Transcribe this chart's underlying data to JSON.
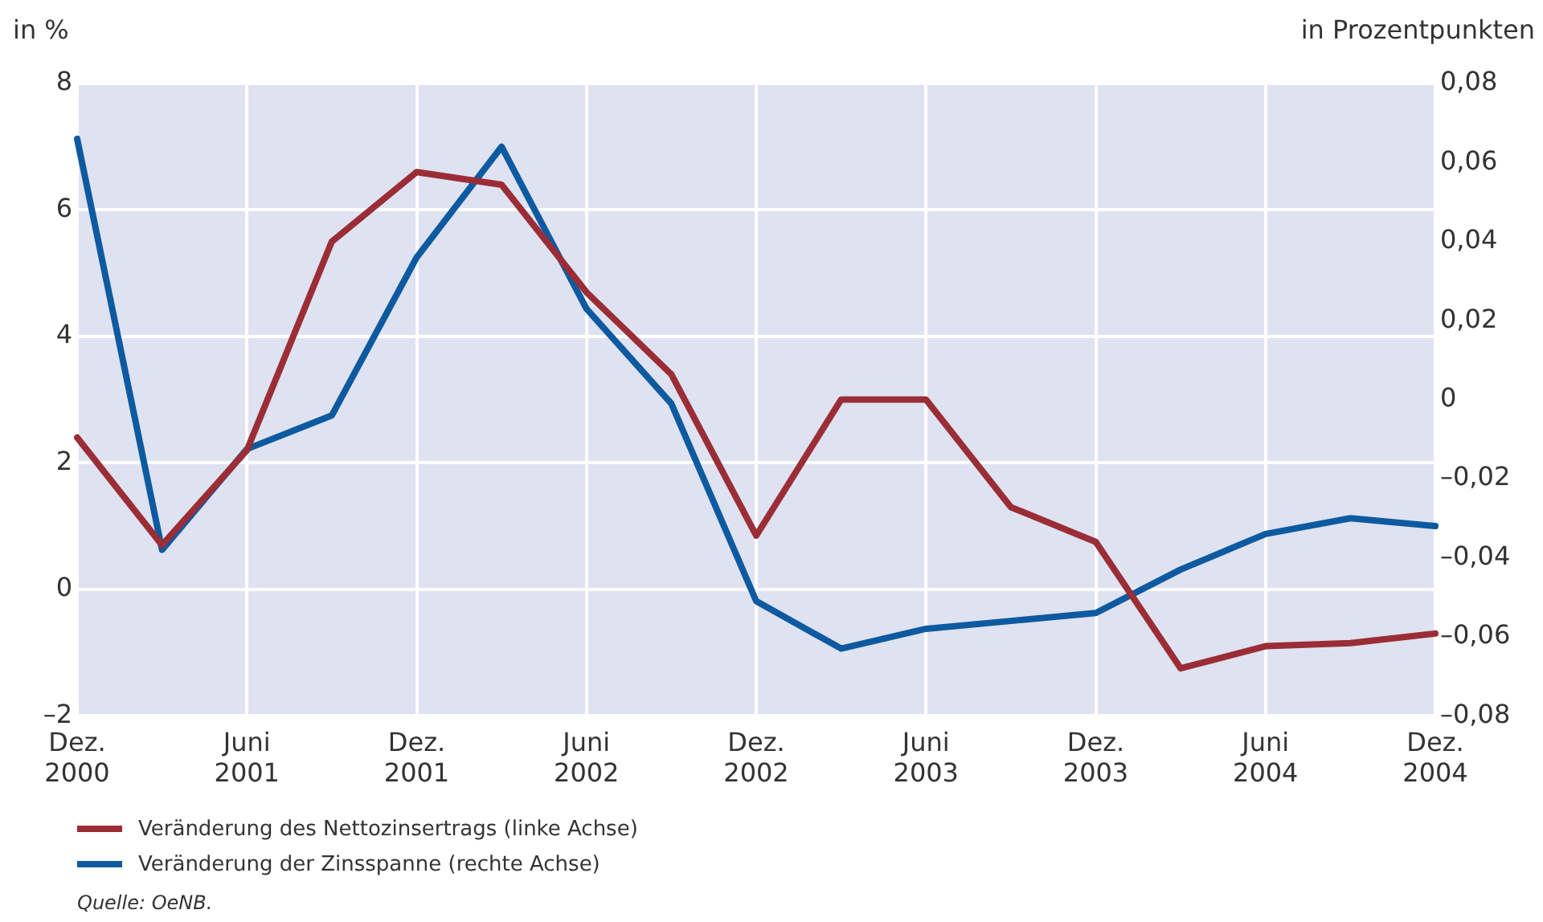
{
  "chart_data": {
    "type": "line",
    "ylabel": "in %",
    "y2label": "in Prozentpunkten",
    "categories": [
      "Dez. 2000",
      null,
      "Juni 2001",
      null,
      "Dez. 2001",
      null,
      "Juni 2002",
      null,
      "Dez. 2002",
      null,
      "Juni 2003",
      null,
      "Dez. 2003",
      null,
      "Juni 2004",
      null,
      "Dez. 2004"
    ],
    "series": [
      {
        "name": "Veränderung des Nettozinsertrags (linke Achse)",
        "color": "#9b2d36",
        "values": [
          2.4,
          0.7,
          2.2,
          5.5,
          6.6,
          6.4,
          4.7,
          3.4,
          0.85,
          3.0,
          3.0,
          1.3,
          0.75,
          -1.25,
          -0.9,
          -0.85,
          -0.7
        ]
      },
      {
        "name": "Veränderung der Zinsspanne (rechte Achse)",
        "color": "#0d5aa0",
        "axis": "y2",
        "values": [
          0.066,
          -0.038,
          -0.0125,
          -0.004,
          0.036,
          0.064,
          0.023,
          -0.001,
          -0.051,
          -0.063,
          -0.058,
          -0.056,
          -0.054,
          -0.043,
          -0.034,
          -0.03,
          -0.032
        ]
      }
    ],
    "ylim": [
      -2,
      8
    ],
    "yticks": [
      {
        "value": -2,
        "label": "–2"
      },
      0,
      2,
      4,
      6,
      8
    ],
    "y2lim": [
      -0.08,
      0.08
    ],
    "y2ticks": [
      {
        "value": -0.08,
        "label": "–0,08"
      },
      {
        "value": -0.06,
        "label": "–0,06"
      },
      {
        "value": -0.04,
        "label": "–0,04"
      },
      {
        "value": -0.02,
        "label": "–0,02"
      },
      0,
      {
        "value": 0.02,
        "label": "0,02"
      },
      {
        "value": 0.04,
        "label": "0,04"
      },
      {
        "value": 0.06,
        "label": "0,06"
      },
      {
        "value": 0.08,
        "label": "0,08"
      }
    ],
    "grid": true,
    "legend": "bottom left",
    "marker": "none",
    "line_style": "solid",
    "annotations": [
      "Quelle: OeNB."
    ]
  }
}
